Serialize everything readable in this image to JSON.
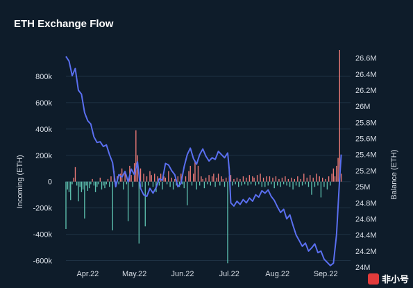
{
  "watermark": {
    "text": "非小号"
  },
  "chart_data": {
    "type": "bar+line",
    "title": "ETH Exchange Flow",
    "ylabel_left": "Incoming (ETH)",
    "ylabel_right": "Balance (ETH)",
    "ylim_left": [
      -650000,
      1000000
    ],
    "ylim_right": [
      24000000,
      26700000
    ],
    "left_ticks": [
      {
        "v": 800000,
        "label": "800k"
      },
      {
        "v": 600000,
        "label": "600k"
      },
      {
        "v": 400000,
        "label": "400k"
      },
      {
        "v": 200000,
        "label": "200k"
      },
      {
        "v": 0,
        "label": "0"
      },
      {
        "v": -200000,
        "label": "-200k"
      },
      {
        "v": -400000,
        "label": "-400k"
      },
      {
        "v": -600000,
        "label": "-600k"
      }
    ],
    "right_ticks": [
      {
        "v": 26600000,
        "label": "26.6M"
      },
      {
        "v": 26400000,
        "label": "26.4M"
      },
      {
        "v": 26200000,
        "label": "26.2M"
      },
      {
        "v": 26000000,
        "label": "26M"
      },
      {
        "v": 25800000,
        "label": "25.8M"
      },
      {
        "v": 25600000,
        "label": "25.6M"
      },
      {
        "v": 25400000,
        "label": "25.4M"
      },
      {
        "v": 25200000,
        "label": "25.2M"
      },
      {
        "v": 25000000,
        "label": "25M"
      },
      {
        "v": 24800000,
        "label": "24.8M"
      },
      {
        "v": 24600000,
        "label": "24.6M"
      },
      {
        "v": 24400000,
        "label": "24.4M"
      },
      {
        "v": 24200000,
        "label": "24.2M"
      },
      {
        "v": 24000000,
        "label": "24M"
      }
    ],
    "x_range": [
      0,
      183
    ],
    "x_ticks": [
      {
        "day": 14,
        "label": "Apr.22"
      },
      {
        "day": 44,
        "label": "May.22"
      },
      {
        "day": 75,
        "label": "Jun.22"
      },
      {
        "day": 105,
        "label": "Jul.22"
      },
      {
        "day": 136,
        "label": "Aug.22"
      },
      {
        "day": 167,
        "label": "Sep.22"
      }
    ],
    "colors": {
      "inflow": "#ef7b78",
      "outflow": "#5ec2b0",
      "balance": "#5a6ff0",
      "grid": "#1f3244"
    },
    "flows": [
      {
        "day": 0,
        "value": -360000
      },
      {
        "day": 1,
        "value": -60000
      },
      {
        "day": 2,
        "value": -80000
      },
      {
        "day": 3,
        "value": -140000
      },
      {
        "day": 4,
        "value": -20000
      },
      {
        "day": 5,
        "value": 30000
      },
      {
        "day": 6,
        "value": 110000
      },
      {
        "day": 7,
        "value": -30000
      },
      {
        "day": 8,
        "value": -150000
      },
      {
        "day": 9,
        "value": -40000
      },
      {
        "day": 10,
        "value": -80000
      },
      {
        "day": 11,
        "value": -60000
      },
      {
        "day": 12,
        "value": -280000
      },
      {
        "day": 13,
        "value": -30000
      },
      {
        "day": 14,
        "value": -70000
      },
      {
        "day": 15,
        "value": -50000
      },
      {
        "day": 16,
        "value": -20000
      },
      {
        "day": 17,
        "value": 20000
      },
      {
        "day": 18,
        "value": -30000
      },
      {
        "day": 19,
        "value": -80000
      },
      {
        "day": 20,
        "value": -40000
      },
      {
        "day": 21,
        "value": -20000
      },
      {
        "day": 22,
        "value": 30000
      },
      {
        "day": 23,
        "value": -60000
      },
      {
        "day": 24,
        "value": -30000
      },
      {
        "day": 25,
        "value": -50000
      },
      {
        "day": 26,
        "value": -20000
      },
      {
        "day": 27,
        "value": 20000
      },
      {
        "day": 28,
        "value": -40000
      },
      {
        "day": 29,
        "value": 40000
      },
      {
        "day": 30,
        "value": -370000
      },
      {
        "day": 31,
        "value": 80000
      },
      {
        "day": 32,
        "value": -30000
      },
      {
        "day": 33,
        "value": 40000
      },
      {
        "day": 34,
        "value": -20000
      },
      {
        "day": 35,
        "value": 60000
      },
      {
        "day": 36,
        "value": 100000
      },
      {
        "day": 37,
        "value": -60000
      },
      {
        "day": 38,
        "value": 70000
      },
      {
        "day": 39,
        "value": -20000
      },
      {
        "day": 40,
        "value": -300000
      },
      {
        "day": 41,
        "value": 120000
      },
      {
        "day": 42,
        "value": 50000
      },
      {
        "day": 43,
        "value": -40000
      },
      {
        "day": 44,
        "value": 140000
      },
      {
        "day": 45,
        "value": 390000
      },
      {
        "day": 46,
        "value": 200000
      },
      {
        "day": 47,
        "value": -470000
      },
      {
        "day": 48,
        "value": 100000
      },
      {
        "day": 49,
        "value": -40000
      },
      {
        "day": 50,
        "value": 60000
      },
      {
        "day": 51,
        "value": -340000
      },
      {
        "day": 52,
        "value": 40000
      },
      {
        "day": 53,
        "value": -30000
      },
      {
        "day": 54,
        "value": 80000
      },
      {
        "day": 55,
        "value": 50000
      },
      {
        "day": 56,
        "value": -40000
      },
      {
        "day": 57,
        "value": 60000
      },
      {
        "day": 58,
        "value": -80000
      },
      {
        "day": 59,
        "value": 40000
      },
      {
        "day": 60,
        "value": -30000
      },
      {
        "day": 61,
        "value": 60000
      },
      {
        "day": 62,
        "value": -60000
      },
      {
        "day": 63,
        "value": 40000
      },
      {
        "day": 64,
        "value": 30000
      },
      {
        "day": 65,
        "value": -20000
      },
      {
        "day": 66,
        "value": 80000
      },
      {
        "day": 67,
        "value": -40000
      },
      {
        "day": 68,
        "value": 30000
      },
      {
        "day": 69,
        "value": -60000
      },
      {
        "day": 70,
        "value": 20000
      },
      {
        "day": 71,
        "value": -30000
      },
      {
        "day": 72,
        "value": 40000
      },
      {
        "day": 73,
        "value": -40000
      },
      {
        "day": 74,
        "value": 60000
      },
      {
        "day": 75,
        "value": -20000
      },
      {
        "day": 76,
        "value": -50000
      },
      {
        "day": 77,
        "value": 40000
      },
      {
        "day": 78,
        "value": -180000
      },
      {
        "day": 79,
        "value": 80000
      },
      {
        "day": 80,
        "value": 120000
      },
      {
        "day": 81,
        "value": -30000
      },
      {
        "day": 82,
        "value": 60000
      },
      {
        "day": 83,
        "value": 160000
      },
      {
        "day": 84,
        "value": -60000
      },
      {
        "day": 85,
        "value": 120000
      },
      {
        "day": 86,
        "value": -30000
      },
      {
        "day": 87,
        "value": 40000
      },
      {
        "day": 88,
        "value": 20000
      },
      {
        "day": 89,
        "value": -50000
      },
      {
        "day": 90,
        "value": 30000
      },
      {
        "day": 91,
        "value": -20000
      },
      {
        "day": 92,
        "value": 50000
      },
      {
        "day": 93,
        "value": -30000
      },
      {
        "day": 94,
        "value": 40000
      },
      {
        "day": 95,
        "value": 60000
      },
      {
        "day": 96,
        "value": -40000
      },
      {
        "day": 97,
        "value": 30000
      },
      {
        "day": 98,
        "value": 60000
      },
      {
        "day": 99,
        "value": -30000
      },
      {
        "day": 100,
        "value": 40000
      },
      {
        "day": 101,
        "value": 20000
      },
      {
        "day": 102,
        "value": -40000
      },
      {
        "day": 103,
        "value": 30000
      },
      {
        "day": 104,
        "value": -620000
      },
      {
        "day": 105,
        "value": 40000
      },
      {
        "day": 106,
        "value": 50000
      },
      {
        "day": 107,
        "value": -30000
      },
      {
        "day": 108,
        "value": 20000
      },
      {
        "day": 109,
        "value": -20000
      },
      {
        "day": 110,
        "value": 30000
      },
      {
        "day": 111,
        "value": -40000
      },
      {
        "day": 112,
        "value": 20000
      },
      {
        "day": 113,
        "value": -30000
      },
      {
        "day": 114,
        "value": 40000
      },
      {
        "day": 115,
        "value": -20000
      },
      {
        "day": 116,
        "value": 30000
      },
      {
        "day": 117,
        "value": -30000
      },
      {
        "day": 118,
        "value": 50000
      },
      {
        "day": 119,
        "value": -20000
      },
      {
        "day": 120,
        "value": 40000
      },
      {
        "day": 121,
        "value": 30000
      },
      {
        "day": 122,
        "value": -30000
      },
      {
        "day": 123,
        "value": 50000
      },
      {
        "day": 124,
        "value": -20000
      },
      {
        "day": 125,
        "value": 60000
      },
      {
        "day": 126,
        "value": -40000
      },
      {
        "day": 127,
        "value": 30000
      },
      {
        "day": 128,
        "value": -40000
      },
      {
        "day": 129,
        "value": 40000
      },
      {
        "day": 130,
        "value": -30000
      },
      {
        "day": 131,
        "value": 40000
      },
      {
        "day": 132,
        "value": -20000
      },
      {
        "day": 133,
        "value": 30000
      },
      {
        "day": 134,
        "value": -50000
      },
      {
        "day": 135,
        "value": 40000
      },
      {
        "day": 136,
        "value": -30000
      },
      {
        "day": 137,
        "value": 20000
      },
      {
        "day": 138,
        "value": -40000
      },
      {
        "day": 139,
        "value": 30000
      },
      {
        "day": 140,
        "value": -20000
      },
      {
        "day": 141,
        "value": 40000
      },
      {
        "day": 142,
        "value": -30000
      },
      {
        "day": 143,
        "value": 20000
      },
      {
        "day": 144,
        "value": -40000
      },
      {
        "day": 145,
        "value": 30000
      },
      {
        "day": 146,
        "value": -60000
      },
      {
        "day": 147,
        "value": 20000
      },
      {
        "day": 148,
        "value": -30000
      },
      {
        "day": 149,
        "value": 40000
      },
      {
        "day": 150,
        "value": -40000
      },
      {
        "day": 151,
        "value": 20000
      },
      {
        "day": 152,
        "value": -30000
      },
      {
        "day": 153,
        "value": 60000
      },
      {
        "day": 154,
        "value": -20000
      },
      {
        "day": 155,
        "value": 30000
      },
      {
        "day": 156,
        "value": -40000
      },
      {
        "day": 157,
        "value": 50000
      },
      {
        "day": 158,
        "value": -100000
      },
      {
        "day": 159,
        "value": 30000
      },
      {
        "day": 160,
        "value": -40000
      },
      {
        "day": 161,
        "value": 60000
      },
      {
        "day": 162,
        "value": -30000
      },
      {
        "day": 163,
        "value": 40000
      },
      {
        "day": 164,
        "value": -120000
      },
      {
        "day": 165,
        "value": 30000
      },
      {
        "day": 166,
        "value": -40000
      },
      {
        "day": 167,
        "value": 20000
      },
      {
        "day": 168,
        "value": -60000
      },
      {
        "day": 169,
        "value": 40000
      },
      {
        "day": 170,
        "value": -30000
      },
      {
        "day": 171,
        "value": 60000
      },
      {
        "day": 172,
        "value": 100000
      },
      {
        "day": 173,
        "value": 40000
      },
      {
        "day": 174,
        "value": 120000
      },
      {
        "day": 175,
        "value": 180000
      },
      {
        "day": 176,
        "value": 1000000
      },
      {
        "day": 177,
        "value": 60000
      }
    ],
    "balance": [
      {
        "day": 0,
        "value": 26620000
      },
      {
        "day": 2,
        "value": 26560000
      },
      {
        "day": 4,
        "value": 26380000
      },
      {
        "day": 6,
        "value": 26470000
      },
      {
        "day": 8,
        "value": 26200000
      },
      {
        "day": 10,
        "value": 26150000
      },
      {
        "day": 12,
        "value": 25920000
      },
      {
        "day": 14,
        "value": 25820000
      },
      {
        "day": 16,
        "value": 25780000
      },
      {
        "day": 18,
        "value": 25620000
      },
      {
        "day": 20,
        "value": 25550000
      },
      {
        "day": 22,
        "value": 25560000
      },
      {
        "day": 24,
        "value": 25500000
      },
      {
        "day": 26,
        "value": 25520000
      },
      {
        "day": 28,
        "value": 25400000
      },
      {
        "day": 30,
        "value": 25300000
      },
      {
        "day": 32,
        "value": 25000000
      },
      {
        "day": 34,
        "value": 25150000
      },
      {
        "day": 36,
        "value": 25120000
      },
      {
        "day": 38,
        "value": 25190000
      },
      {
        "day": 40,
        "value": 25060000
      },
      {
        "day": 42,
        "value": 25220000
      },
      {
        "day": 44,
        "value": 25150000
      },
      {
        "day": 46,
        "value": 25310000
      },
      {
        "day": 48,
        "value": 24980000
      },
      {
        "day": 50,
        "value": 24900000
      },
      {
        "day": 52,
        "value": 24880000
      },
      {
        "day": 54,
        "value": 24980000
      },
      {
        "day": 56,
        "value": 24920000
      },
      {
        "day": 58,
        "value": 24990000
      },
      {
        "day": 60,
        "value": 25100000
      },
      {
        "day": 62,
        "value": 25080000
      },
      {
        "day": 64,
        "value": 25290000
      },
      {
        "day": 66,
        "value": 25270000
      },
      {
        "day": 68,
        "value": 25200000
      },
      {
        "day": 70,
        "value": 25150000
      },
      {
        "day": 72,
        "value": 25000000
      },
      {
        "day": 74,
        "value": 25040000
      },
      {
        "day": 76,
        "value": 25250000
      },
      {
        "day": 78,
        "value": 25400000
      },
      {
        "day": 80,
        "value": 25480000
      },
      {
        "day": 82,
        "value": 25350000
      },
      {
        "day": 84,
        "value": 25280000
      },
      {
        "day": 86,
        "value": 25400000
      },
      {
        "day": 88,
        "value": 25470000
      },
      {
        "day": 90,
        "value": 25380000
      },
      {
        "day": 92,
        "value": 25320000
      },
      {
        "day": 94,
        "value": 25360000
      },
      {
        "day": 96,
        "value": 25340000
      },
      {
        "day": 98,
        "value": 25440000
      },
      {
        "day": 100,
        "value": 25400000
      },
      {
        "day": 102,
        "value": 25360000
      },
      {
        "day": 104,
        "value": 25420000
      },
      {
        "day": 105,
        "value": 25220000
      },
      {
        "day": 106,
        "value": 24800000
      },
      {
        "day": 108,
        "value": 24760000
      },
      {
        "day": 110,
        "value": 24820000
      },
      {
        "day": 112,
        "value": 24780000
      },
      {
        "day": 114,
        "value": 24840000
      },
      {
        "day": 116,
        "value": 24800000
      },
      {
        "day": 118,
        "value": 24860000
      },
      {
        "day": 120,
        "value": 24820000
      },
      {
        "day": 122,
        "value": 24900000
      },
      {
        "day": 124,
        "value": 24870000
      },
      {
        "day": 126,
        "value": 24950000
      },
      {
        "day": 128,
        "value": 24920000
      },
      {
        "day": 130,
        "value": 24960000
      },
      {
        "day": 132,
        "value": 24880000
      },
      {
        "day": 134,
        "value": 24830000
      },
      {
        "day": 136,
        "value": 24750000
      },
      {
        "day": 138,
        "value": 24680000
      },
      {
        "day": 140,
        "value": 24720000
      },
      {
        "day": 142,
        "value": 24600000
      },
      {
        "day": 144,
        "value": 24650000
      },
      {
        "day": 146,
        "value": 24520000
      },
      {
        "day": 148,
        "value": 24400000
      },
      {
        "day": 150,
        "value": 24330000
      },
      {
        "day": 152,
        "value": 24260000
      },
      {
        "day": 154,
        "value": 24300000
      },
      {
        "day": 156,
        "value": 24200000
      },
      {
        "day": 158,
        "value": 24240000
      },
      {
        "day": 160,
        "value": 24290000
      },
      {
        "day": 162,
        "value": 24180000
      },
      {
        "day": 164,
        "value": 24200000
      },
      {
        "day": 166,
        "value": 24100000
      },
      {
        "day": 168,
        "value": 24060000
      },
      {
        "day": 170,
        "value": 24020000
      },
      {
        "day": 172,
        "value": 24050000
      },
      {
        "day": 174,
        "value": 24400000
      },
      {
        "day": 176,
        "value": 25100000
      },
      {
        "day": 177,
        "value": 25400000
      }
    ]
  }
}
